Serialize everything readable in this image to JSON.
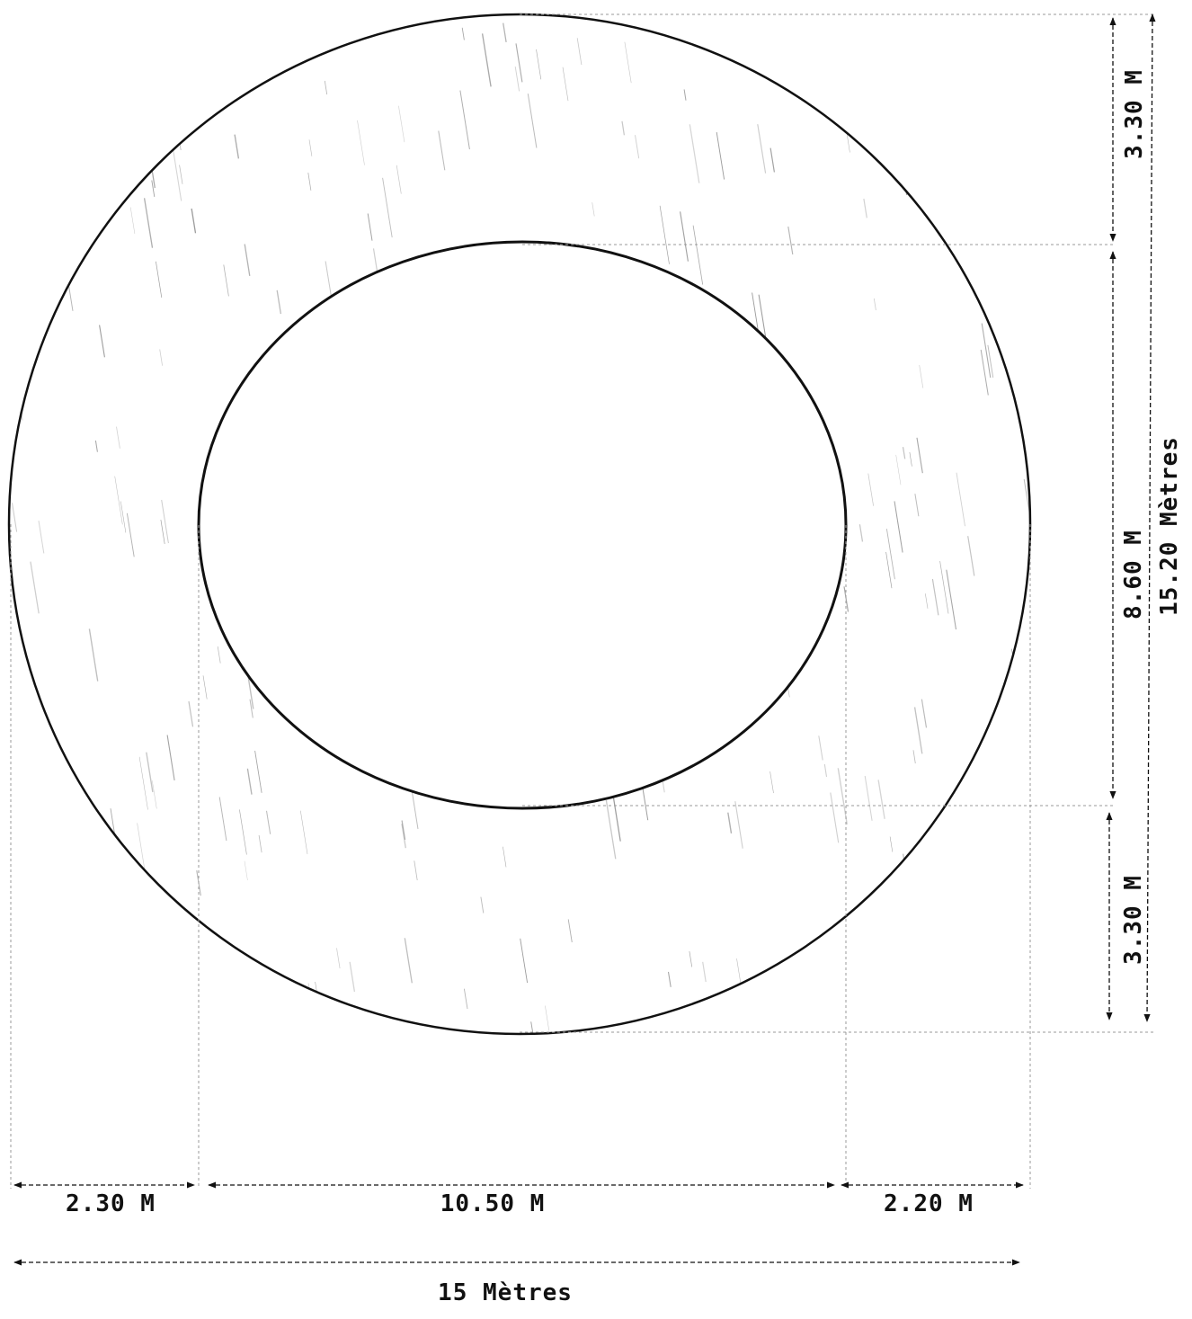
{
  "dimensions": {
    "top_ring_label": "3.30 M",
    "inner_height_label": "8.60 M",
    "bottom_ring_label": "3.30 M",
    "total_height_label": "15.20 Mètres",
    "left_ring_label": "2.30 M",
    "inner_width_label": "10.50 M",
    "right_ring_label": "2.20 M",
    "total_width_label": "15 Mètres"
  },
  "colors": {
    "ink": "#111111",
    "hatch": "#8a8a8a",
    "guide": "#9a9a9a"
  }
}
